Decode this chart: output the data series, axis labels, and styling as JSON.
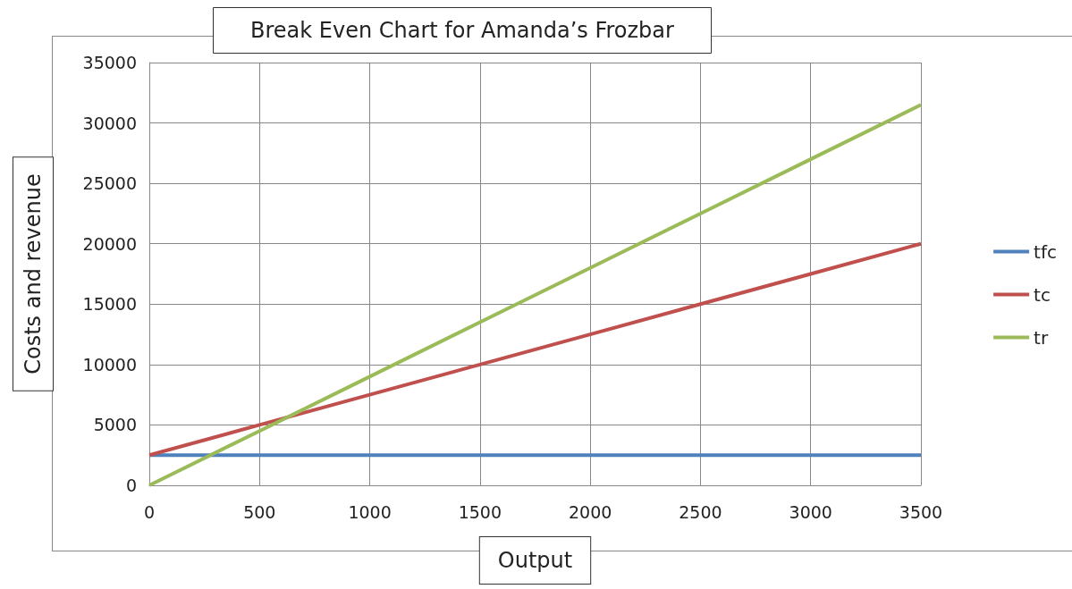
{
  "chart_data": {
    "type": "line",
    "title": "Break Even Chart for Amanda’s Frozbar",
    "xlabel": "Output",
    "ylabel": "Costs and revenue",
    "x": [
      0,
      500,
      1000,
      1500,
      2000,
      2500,
      3000,
      3500
    ],
    "series": [
      {
        "name": "tfc",
        "color": "#4f81bd",
        "values": [
          2500,
          2500,
          2500,
          2500,
          2500,
          2500,
          2500,
          2500
        ]
      },
      {
        "name": "tc",
        "color": "#c0504d",
        "values": [
          2500,
          5000,
          7500,
          10000,
          12500,
          15000,
          17500,
          20000
        ]
      },
      {
        "name": "tr",
        "color": "#9bbb59",
        "values": [
          0,
          4500,
          9000,
          13500,
          18000,
          22500,
          27000,
          31500
        ]
      }
    ],
    "xlim": [
      0,
      3500
    ],
    "xticks": [
      0,
      500,
      1000,
      1500,
      2000,
      2500,
      3000,
      3500
    ],
    "ylim": [
      0,
      35000
    ],
    "yticks": [
      0,
      5000,
      10000,
      15000,
      20000,
      25000,
      30000,
      35000
    ],
    "grid": true,
    "legend": "right",
    "marker": "none",
    "line_style": "solid"
  }
}
